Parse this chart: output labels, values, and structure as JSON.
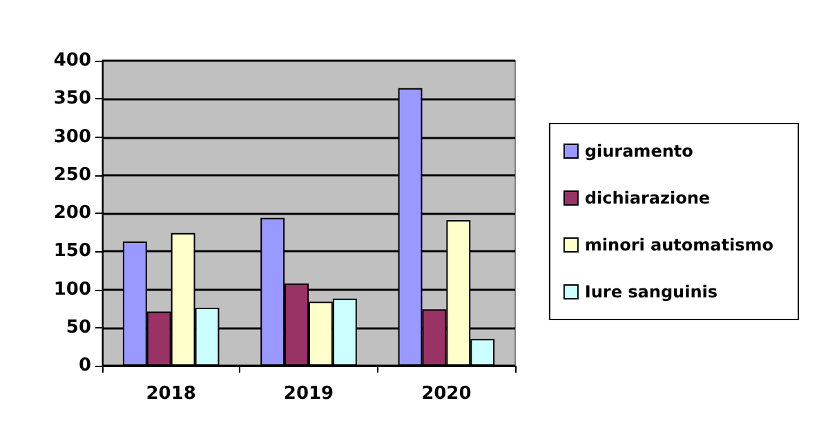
{
  "chart_data": {
    "type": "bar",
    "categories": [
      "2018",
      "2019",
      "2020"
    ],
    "series": [
      {
        "name": "giuramento",
        "color": "#9999ff",
        "values": [
          163,
          194,
          364
        ]
      },
      {
        "name": "dichiarazione",
        "color": "#993366",
        "values": [
          71,
          108,
          74
        ]
      },
      {
        "name": "minori automatismo",
        "color": "#ffffcc",
        "values": [
          174,
          84,
          191
        ]
      },
      {
        "name": "Iure sanguinis",
        "color": "#ccffff",
        "values": [
          76,
          88,
          35
        ]
      }
    ],
    "ylim": [
      0,
      400
    ],
    "yticks": [
      0,
      50,
      100,
      150,
      200,
      250,
      300,
      350,
      400
    ],
    "grid": "y",
    "legend": "right"
  }
}
